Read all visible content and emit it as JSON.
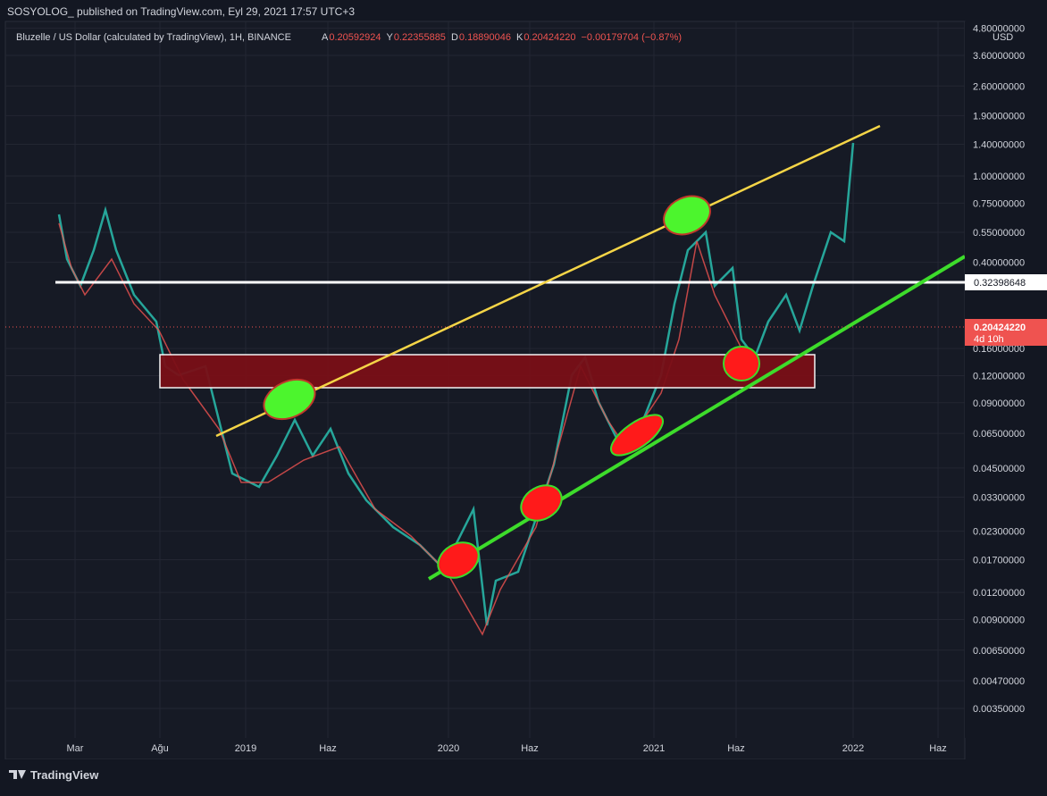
{
  "header": {
    "publisher": "SOSYOLOG_ published on TradingView.com, Eyl 29, 2021 17:57 UTC+3"
  },
  "legend": {
    "symbol": "Bluzelle / US Dollar (calculated by TradingView), 1H, BINANCE",
    "ohlc": [
      {
        "key": "A",
        "value": "0.20592924"
      },
      {
        "key": "Y",
        "value": "0.22355885"
      },
      {
        "key": "D",
        "value": "0.18890046"
      },
      {
        "key": "K",
        "value": "0.20424220"
      }
    ],
    "change": "−0.00179704 (−0.87%)"
  },
  "price_axis": {
    "currency": "USD",
    "labels": [
      "4.80000000",
      "3.60000000",
      "2.60000000",
      "1.90000000",
      "1.40000000",
      "1.00000000",
      "0.75000000",
      "0.55000000",
      "0.40000000",
      "0.16000000",
      "0.12000000",
      "0.09000000",
      "0.06500000",
      "0.04500000",
      "0.03300000",
      "0.02300000",
      "0.01700000",
      "0.01200000",
      "0.00900000",
      "0.00650000",
      "0.00470000",
      "0.00350000"
    ],
    "line_badge": "0.32398648",
    "price_badge": "0.20424220",
    "countdown": "4d 10h"
  },
  "time_axis": {
    "labels": [
      "Mar",
      "Ağu",
      "2019",
      "Haz",
      "2020",
      "Haz",
      "2021",
      "Haz",
      "2022",
      "Haz"
    ]
  },
  "footer": {
    "brand": "TradingView"
  }
}
